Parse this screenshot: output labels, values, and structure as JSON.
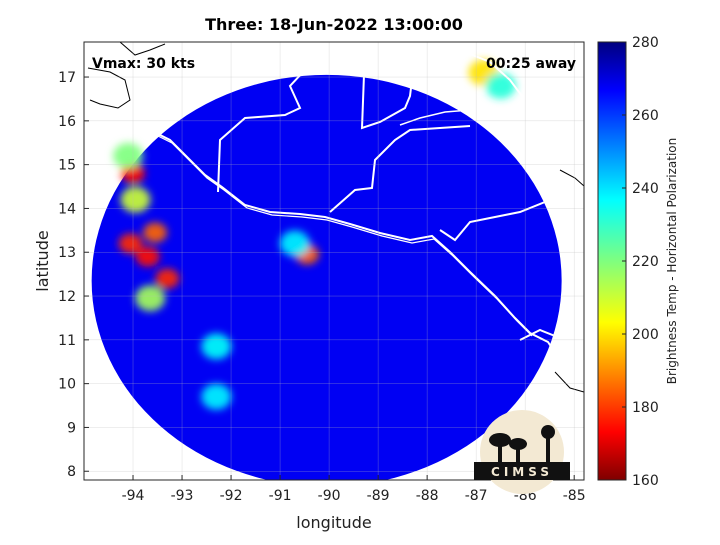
{
  "chart_data": {
    "type": "heatmap",
    "title": "Three: 18-Jun-2022 13:00:00",
    "xlabel": "longitude",
    "ylabel": "latitude",
    "xlim": [
      -95,
      -84.8
    ],
    "ylim": [
      7.8,
      17.8
    ],
    "x_ticks": [
      -94,
      -93,
      -92,
      -91,
      -90,
      -89,
      -88,
      -87,
      -86,
      -85
    ],
    "y_ticks": [
      8,
      9,
      10,
      11,
      12,
      13,
      14,
      15,
      16,
      17
    ],
    "grid": true,
    "annotations": {
      "vmax": "Vmax: 30 kts",
      "away": "00:25 away"
    },
    "colorbar": {
      "label": "Brightness Temp - Horizontal Polarization",
      "ticks": [
        160,
        180,
        200,
        220,
        240,
        260,
        280
      ],
      "range": [
        160,
        280
      ],
      "colormap": "jet"
    },
    "field": {
      "background_value": 268,
      "swath_center": [
        -90.05,
        12.35
      ],
      "swath_radius_deg": 4.7,
      "cold_features": [
        {
          "lon": -94.0,
          "lat": 14.8,
          "value": 175
        },
        {
          "lon": -94.1,
          "lat": 15.2,
          "value": 220
        },
        {
          "lon": -94.05,
          "lat": 13.2,
          "value": 178
        },
        {
          "lon": -93.7,
          "lat": 12.9,
          "value": 175
        },
        {
          "lon": -93.55,
          "lat": 13.45,
          "value": 185
        },
        {
          "lon": -93.3,
          "lat": 12.4,
          "value": 178
        },
        {
          "lon": -93.95,
          "lat": 14.2,
          "value": 210
        },
        {
          "lon": -93.65,
          "lat": 11.95,
          "value": 215
        },
        {
          "lon": -90.45,
          "lat": 12.95,
          "value": 185
        },
        {
          "lon": -90.7,
          "lat": 13.2,
          "value": 238
        },
        {
          "lon": -92.3,
          "lat": 10.85,
          "value": 236
        },
        {
          "lon": -92.3,
          "lat": 9.7,
          "value": 238
        },
        {
          "lon": -86.85,
          "lat": 17.1,
          "value": 200
        },
        {
          "lon": -86.5,
          "lat": 16.8,
          "value": 232
        }
      ]
    }
  },
  "logo": {
    "text": "CIMSS"
  }
}
